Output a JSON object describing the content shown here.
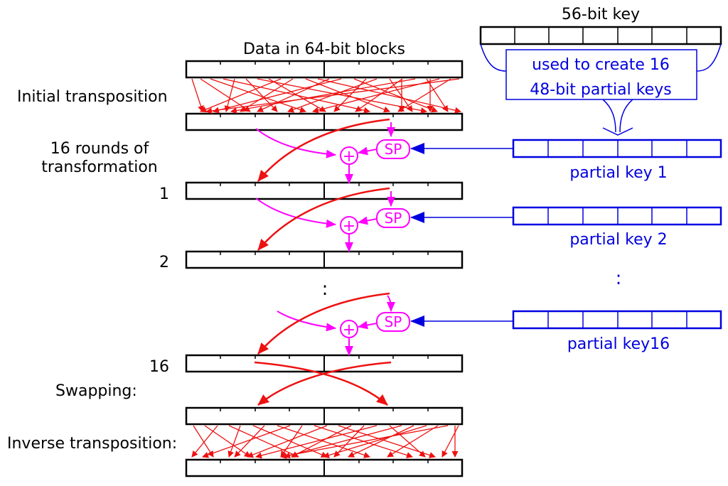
{
  "key": {
    "title": "56-bit key",
    "note_line1": "used to create 16",
    "note_line2": "48-bit partial keys"
  },
  "data_title": "Data in 64-bit blocks",
  "stages": {
    "initial": "Initial transposition",
    "rounds_line1": "16 rounds of",
    "rounds_line2": "transformation",
    "round_1": "1",
    "round_2": "2",
    "round_16": "16",
    "swapping": "Swapping:",
    "inverse": "Inverse transposition:"
  },
  "sp_label": "SP",
  "xor_symbol": "+",
  "partial_keys": [
    "partial key 1",
    "partial key 2",
    "partial key16"
  ],
  "ellipsis": ":",
  "colors": {
    "block": "#000000",
    "permutation_arrow": "#ee1111",
    "round_function": "#ff00ff",
    "key": "#0000e0"
  }
}
